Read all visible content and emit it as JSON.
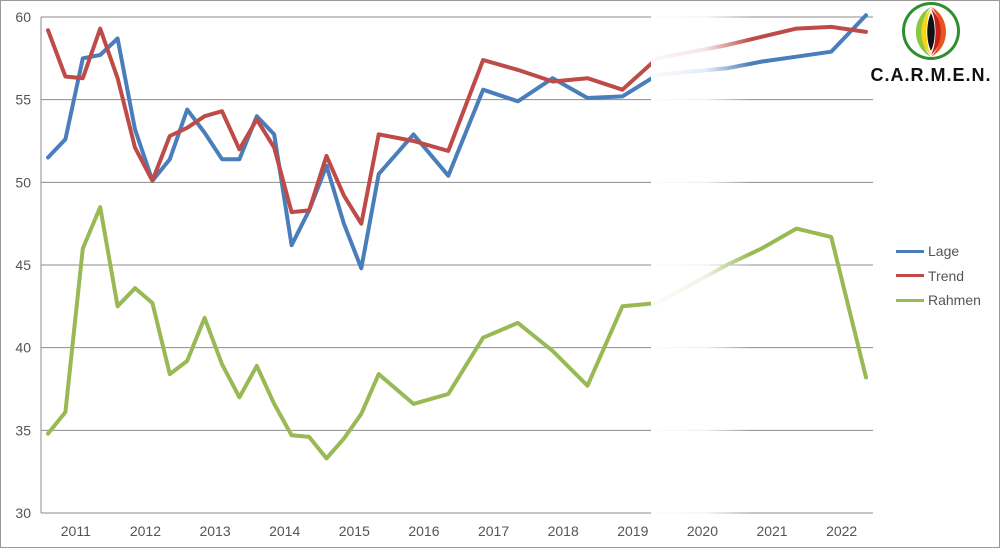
{
  "colors": {
    "lage": "#4a7ebb",
    "trend": "#be4b48",
    "rahmen": "#98b954",
    "grid": "#8c8c8c",
    "axis_text": "#555555"
  },
  "logo": {
    "text": "C.A.R.M.E.N."
  },
  "chart_data": {
    "type": "line",
    "ylim": [
      30,
      60
    ],
    "yticks": [
      "30",
      "35",
      "40",
      "45",
      "50",
      "55",
      "60"
    ],
    "xticks": [
      "2011",
      "2012",
      "2013",
      "2014",
      "2015",
      "2016",
      "2017",
      "2018",
      "2019",
      "2020",
      "2021",
      "2022"
    ],
    "faded_tick": "2020",
    "x": [
      2010.65,
      2010.9,
      2011.15,
      2011.4,
      2011.65,
      2011.9,
      2012.15,
      2012.4,
      2012.65,
      2012.9,
      2013.15,
      2013.4,
      2013.65,
      2013.9,
      2014.15,
      2014.4,
      2014.65,
      2014.9,
      2015.15,
      2015.4,
      2015.9,
      2016.4,
      2016.9,
      2017.4,
      2017.9,
      2018.4,
      2018.9,
      2019.4,
      2020.4,
      2020.9,
      2021.4,
      2021.9,
      2022.4
    ],
    "series": [
      {
        "name": "Lage",
        "values": [
          51.5,
          52.6,
          57.5,
          57.7,
          58.7,
          53.2,
          50.1,
          51.4,
          54.4,
          53.0,
          51.4,
          51.4,
          54.0,
          52.9,
          46.2,
          48.3,
          51.0,
          47.5,
          44.8,
          50.5,
          52.9,
          50.4,
          55.6,
          54.9,
          56.3,
          55.1,
          55.2,
          56.5,
          56.9,
          57.3,
          57.6,
          57.9,
          60.1
        ]
      },
      {
        "name": "Trend",
        "values": [
          59.2,
          56.4,
          56.3,
          59.3,
          56.3,
          52.1,
          50.1,
          52.8,
          53.3,
          54.0,
          54.3,
          52.0,
          53.8,
          52.1,
          48.2,
          48.3,
          51.6,
          49.2,
          47.5,
          52.9,
          52.5,
          51.9,
          57.4,
          56.8,
          56.1,
          56.3,
          55.6,
          57.5,
          58.3,
          58.8,
          59.3,
          59.4,
          59.1
        ]
      },
      {
        "name": "Rahmen",
        "values": [
          34.8,
          36.1,
          46.0,
          48.5,
          42.5,
          43.6,
          42.7,
          38.4,
          39.2,
          41.8,
          39.0,
          37.0,
          38.9,
          36.6,
          34.7,
          34.6,
          33.3,
          34.5,
          36.0,
          38.4,
          36.6,
          37.2,
          40.6,
          41.5,
          39.8,
          37.7,
          42.5,
          42.7,
          45.0,
          46.0,
          47.2,
          46.7,
          38.2
        ]
      }
    ]
  }
}
